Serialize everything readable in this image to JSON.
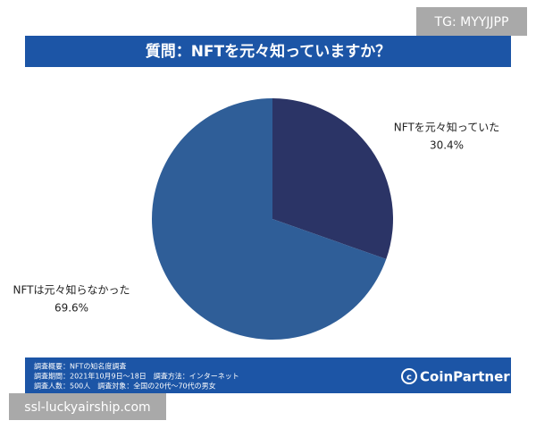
{
  "chart_data": {
    "type": "pie",
    "title": "質問：NFTを元々知っていますか？",
    "categories": [
      "NFTを元々知っていた",
      "NFTは元々知らなかった"
    ],
    "values": [
      30.4,
      69.6
    ],
    "value_labels": [
      "30.4%",
      "69.6%"
    ],
    "colors": [
      "#2b3466",
      "#2f5e98"
    ]
  },
  "footer": {
    "lines": [
      "調査概要：NFTの知名度調査",
      "調査期間：2021年10月9日〜18日　調査方法：インターネット",
      "調査人数：500人　調査対象：全国の20代〜70代の男女"
    ],
    "brand": "CoinPartner"
  },
  "watermarks": [
    "TG: MYYJJPP",
    "ssl-luckyairship.com"
  ]
}
